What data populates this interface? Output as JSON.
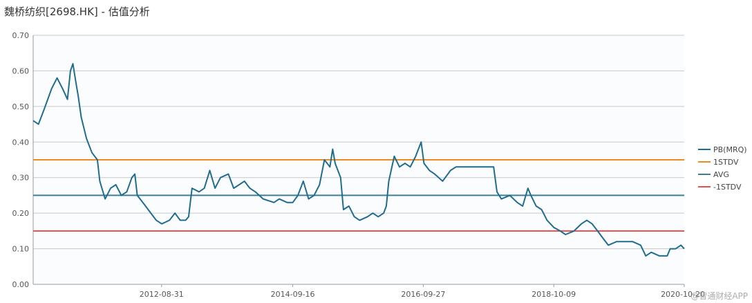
{
  "title": "魏桥纺织[2698.HK] - 估值分析",
  "watermark": "@智通财经APP",
  "colors": {
    "background": "#ffffff",
    "plot_bg": "#fbfcfe",
    "grid": "#c8c8c8",
    "axis_text": "#555555",
    "pb": "#1e6d8f",
    "stdv_plus": "#ef8a22",
    "avg": "#3d7e98",
    "stdv_minus": "#e05252"
  },
  "chart_data": {
    "type": "line",
    "title": "魏桥纺织[2698.HK] - 估值分析",
    "xlabel": "",
    "ylabel": "",
    "ylim": [
      0,
      0.7
    ],
    "yticks": [
      "0.00",
      "0.10",
      "0.20",
      "0.30",
      "0.40",
      "0.50",
      "0.60",
      "0.70"
    ],
    "xlim": [
      "2010-09-01",
      "2020-10-20"
    ],
    "xticks": [
      "2012-08-31",
      "2014-09-16",
      "2016-09-27",
      "2018-10-09",
      "2020-10-20"
    ],
    "grid": true,
    "legend_position": "right",
    "series": [
      {
        "name": "PB(MRQ)",
        "color": "#1e6d8f",
        "points": [
          [
            "2010-09-01",
            0.46
          ],
          [
            "2010-10-01",
            0.45
          ],
          [
            "2010-11-01",
            0.49
          ],
          [
            "2010-12-15",
            0.55
          ],
          [
            "2011-01-15",
            0.58
          ],
          [
            "2011-02-15",
            0.55
          ],
          [
            "2011-03-15",
            0.52
          ],
          [
            "2011-04-01",
            0.6
          ],
          [
            "2011-04-15",
            0.62
          ],
          [
            "2011-05-01",
            0.57
          ],
          [
            "2011-05-15",
            0.53
          ],
          [
            "2011-06-01",
            0.47
          ],
          [
            "2011-07-01",
            0.41
          ],
          [
            "2011-08-01",
            0.37
          ],
          [
            "2011-09-01",
            0.35
          ],
          [
            "2011-09-15",
            0.29
          ],
          [
            "2011-10-15",
            0.24
          ],
          [
            "2011-11-15",
            0.27
          ],
          [
            "2011-12-15",
            0.28
          ],
          [
            "2012-01-15",
            0.25
          ],
          [
            "2012-02-15",
            0.26
          ],
          [
            "2012-03-15",
            0.3
          ],
          [
            "2012-04-01",
            0.31
          ],
          [
            "2012-04-15",
            0.25
          ],
          [
            "2012-06-01",
            0.22
          ],
          [
            "2012-07-01",
            0.2
          ],
          [
            "2012-08-01",
            0.18
          ],
          [
            "2012-09-01",
            0.17
          ],
          [
            "2012-10-15",
            0.18
          ],
          [
            "2012-11-15",
            0.2
          ],
          [
            "2012-12-15",
            0.18
          ],
          [
            "2013-01-15",
            0.18
          ],
          [
            "2013-02-01",
            0.19
          ],
          [
            "2013-02-20",
            0.27
          ],
          [
            "2013-04-01",
            0.26
          ],
          [
            "2013-05-01",
            0.27
          ],
          [
            "2013-06-01",
            0.32
          ],
          [
            "2013-07-01",
            0.27
          ],
          [
            "2013-08-01",
            0.3
          ],
          [
            "2013-09-15",
            0.31
          ],
          [
            "2013-10-15",
            0.27
          ],
          [
            "2013-11-15",
            0.28
          ],
          [
            "2013-12-15",
            0.29
          ],
          [
            "2014-01-15",
            0.27
          ],
          [
            "2014-02-15",
            0.26
          ],
          [
            "2014-04-01",
            0.24
          ],
          [
            "2014-06-01",
            0.23
          ],
          [
            "2014-07-01",
            0.24
          ],
          [
            "2014-08-15",
            0.23
          ],
          [
            "2014-09-16",
            0.23
          ],
          [
            "2014-10-15",
            0.25
          ],
          [
            "2014-11-15",
            0.29
          ],
          [
            "2014-12-15",
            0.24
          ],
          [
            "2015-01-15",
            0.25
          ],
          [
            "2015-02-15",
            0.28
          ],
          [
            "2015-03-15",
            0.35
          ],
          [
            "2015-04-15",
            0.33
          ],
          [
            "2015-05-01",
            0.38
          ],
          [
            "2015-05-15",
            0.34
          ],
          [
            "2015-06-15",
            0.3
          ],
          [
            "2015-07-01",
            0.21
          ],
          [
            "2015-08-01",
            0.22
          ],
          [
            "2015-09-01",
            0.19
          ],
          [
            "2015-10-01",
            0.18
          ],
          [
            "2015-11-15",
            0.19
          ],
          [
            "2015-12-15",
            0.2
          ],
          [
            "2016-01-15",
            0.19
          ],
          [
            "2016-02-15",
            0.2
          ],
          [
            "2016-03-01",
            0.22
          ],
          [
            "2016-03-15",
            0.29
          ],
          [
            "2016-04-15",
            0.36
          ],
          [
            "2016-05-15",
            0.33
          ],
          [
            "2016-06-15",
            0.34
          ],
          [
            "2016-07-15",
            0.33
          ],
          [
            "2016-08-15",
            0.36
          ],
          [
            "2016-09-15",
            0.4
          ],
          [
            "2016-10-01",
            0.34
          ],
          [
            "2016-11-01",
            0.32
          ],
          [
            "2016-12-01",
            0.31
          ],
          [
            "2017-01-15",
            0.29
          ],
          [
            "2017-03-01",
            0.32
          ],
          [
            "2017-04-01",
            0.33
          ],
          [
            "2017-06-01",
            0.33
          ],
          [
            "2017-09-01",
            0.33
          ],
          [
            "2017-11-01",
            0.33
          ],
          [
            "2017-11-20",
            0.26
          ],
          [
            "2017-12-15",
            0.24
          ],
          [
            "2018-02-01",
            0.25
          ],
          [
            "2018-03-15",
            0.23
          ],
          [
            "2018-04-15",
            0.22
          ],
          [
            "2018-05-15",
            0.27
          ],
          [
            "2018-06-01",
            0.25
          ],
          [
            "2018-07-01",
            0.22
          ],
          [
            "2018-08-01",
            0.21
          ],
          [
            "2018-09-01",
            0.18
          ],
          [
            "2018-10-09",
            0.16
          ],
          [
            "2018-11-15",
            0.15
          ],
          [
            "2018-12-15",
            0.14
          ],
          [
            "2019-02-01",
            0.15
          ],
          [
            "2019-03-15",
            0.17
          ],
          [
            "2019-04-15",
            0.18
          ],
          [
            "2019-05-15",
            0.17
          ],
          [
            "2019-06-15",
            0.15
          ],
          [
            "2019-07-15",
            0.13
          ],
          [
            "2019-08-15",
            0.11
          ],
          [
            "2019-10-01",
            0.12
          ],
          [
            "2019-11-15",
            0.12
          ],
          [
            "2020-01-01",
            0.12
          ],
          [
            "2020-02-15",
            0.11
          ],
          [
            "2020-03-15",
            0.08
          ],
          [
            "2020-04-15",
            0.09
          ],
          [
            "2020-06-01",
            0.08
          ],
          [
            "2020-07-15",
            0.08
          ],
          [
            "2020-08-01",
            0.1
          ],
          [
            "2020-09-01",
            0.1
          ],
          [
            "2020-10-01",
            0.11
          ],
          [
            "2020-10-20",
            0.1
          ]
        ]
      },
      {
        "name": "1STDV",
        "color": "#ef8a22",
        "constant": 0.35
      },
      {
        "name": "AVG",
        "color": "#3d7e98",
        "constant": 0.25
      },
      {
        "name": "-1STDV",
        "color": "#e05252",
        "constant": 0.15
      }
    ]
  }
}
